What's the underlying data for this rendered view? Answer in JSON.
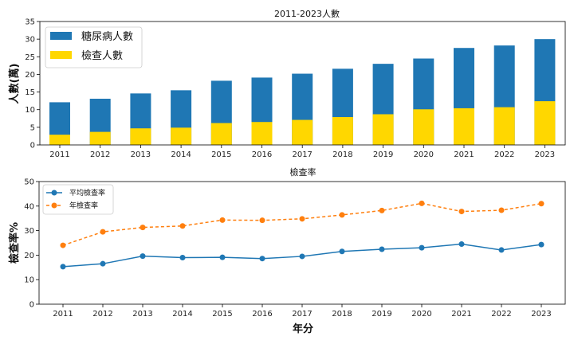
{
  "chart_data": [
    {
      "type": "bar",
      "stacked": false,
      "title": "2011-2023人數",
      "ylabel": "人數(萬)",
      "xlabel": "",
      "ylim": [
        0,
        35
      ],
      "yticks": [
        0,
        5,
        10,
        15,
        20,
        25,
        30,
        35
      ],
      "categories": [
        "2011",
        "2012",
        "2013",
        "2014",
        "2015",
        "2016",
        "2017",
        "2018",
        "2019",
        "2020",
        "2021",
        "2022",
        "2023"
      ],
      "series": [
        {
          "name": "糖尿病人數",
          "color": "#1f77b4",
          "values": [
            12.1,
            13.1,
            14.6,
            15.5,
            18.2,
            19.1,
            20.2,
            21.6,
            23.0,
            24.5,
            27.5,
            28.2,
            30.0
          ]
        },
        {
          "name": "檢查人數",
          "color": "#ffd700",
          "values": [
            2.9,
            3.7,
            4.7,
            4.9,
            6.2,
            6.5,
            7.1,
            7.9,
            8.7,
            10.1,
            10.4,
            10.7,
            12.4
          ]
        }
      ],
      "legend": "top-left",
      "grid": false
    },
    {
      "type": "line",
      "title": "檢查率",
      "ylabel": "檢查率%",
      "xlabel": "年分",
      "ylim": [
        0,
        50
      ],
      "yticks": [
        0,
        10,
        20,
        30,
        40,
        50
      ],
      "categories": [
        "2011",
        "2012",
        "2013",
        "2014",
        "2015",
        "2016",
        "2017",
        "2018",
        "2019",
        "2020",
        "2021",
        "2022",
        "2023"
      ],
      "series": [
        {
          "name": "平均檢查率",
          "color": "#1f77b4",
          "style": "solid",
          "marker": "circle",
          "values": [
            15.3,
            16.5,
            19.6,
            19.0,
            19.1,
            18.6,
            19.5,
            21.5,
            22.4,
            23.0,
            24.5,
            22.1,
            24.3
          ]
        },
        {
          "name": "年檢查率",
          "color": "#ff7f0e",
          "style": "dashed",
          "marker": "circle",
          "values": [
            24.0,
            29.5,
            31.3,
            31.9,
            34.3,
            34.2,
            34.8,
            36.4,
            38.2,
            41.1,
            37.8,
            38.3,
            41.0
          ]
        }
      ],
      "legend": "top-left",
      "grid": false
    }
  ]
}
